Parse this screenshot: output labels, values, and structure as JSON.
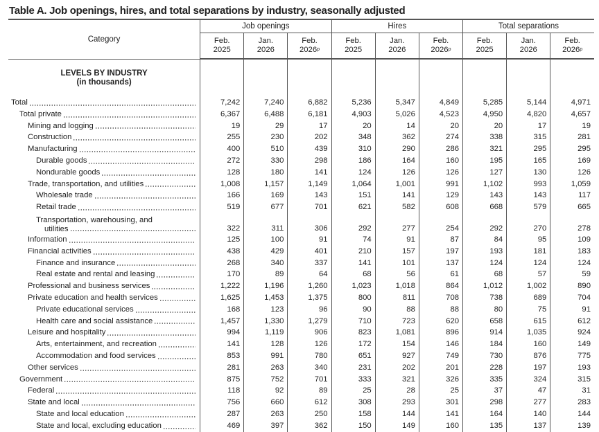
{
  "title": "Table A. Job openings, hires, and total separations by industry, seasonally adjusted",
  "header": {
    "category": "Category",
    "groups": [
      "Job openings",
      "Hires",
      "Total separations"
    ],
    "periods": [
      {
        "month": "Feb.",
        "year": "2025",
        "sup": ""
      },
      {
        "month": "Jan.",
        "year": "2026",
        "sup": ""
      },
      {
        "month": "Feb.",
        "year": "2026",
        "sup": "p"
      }
    ]
  },
  "section": {
    "title": "LEVELS BY INDUSTRY",
    "subtitle": "(in thousands)"
  },
  "rows": [
    {
      "label": "Total",
      "indent": 0,
      "values": [
        "7,242",
        "7,240",
        "6,882",
        "5,236",
        "5,347",
        "4,849",
        "5,285",
        "5,144",
        "4,971"
      ]
    },
    {
      "label": "Total private",
      "indent": 1,
      "values": [
        "6,367",
        "6,488",
        "6,181",
        "4,903",
        "5,026",
        "4,523",
        "4,950",
        "4,820",
        "4,657"
      ]
    },
    {
      "label": "Mining and logging",
      "indent": 2,
      "values": [
        "19",
        "29",
        "17",
        "20",
        "14",
        "20",
        "20",
        "17",
        "19"
      ]
    },
    {
      "label": "Construction",
      "indent": 2,
      "values": [
        "255",
        "230",
        "202",
        "348",
        "362",
        "274",
        "338",
        "315",
        "281"
      ]
    },
    {
      "label": "Manufacturing",
      "indent": 2,
      "values": [
        "400",
        "510",
        "439",
        "310",
        "290",
        "286",
        "321",
        "295",
        "295"
      ]
    },
    {
      "label": "Durable goods",
      "indent": 3,
      "values": [
        "272",
        "330",
        "298",
        "186",
        "164",
        "160",
        "195",
        "165",
        "169"
      ]
    },
    {
      "label": "Nondurable goods",
      "indent": 3,
      "values": [
        "128",
        "180",
        "141",
        "124",
        "126",
        "126",
        "127",
        "130",
        "126"
      ]
    },
    {
      "label": "Trade, transportation, and utilities",
      "indent": 2,
      "values": [
        "1,008",
        "1,157",
        "1,149",
        "1,064",
        "1,001",
        "991",
        "1,102",
        "993",
        "1,059"
      ]
    },
    {
      "label": "Wholesale trade",
      "indent": 3,
      "values": [
        "166",
        "169",
        "143",
        "151",
        "141",
        "129",
        "143",
        "143",
        "117"
      ]
    },
    {
      "label": "Retail trade",
      "indent": 3,
      "values": [
        "519",
        "677",
        "701",
        "621",
        "582",
        "608",
        "668",
        "579",
        "665"
      ]
    },
    {
      "label": "utilities",
      "label_line1": "Transportation, warehousing, and",
      "indent": 3,
      "values": [
        "322",
        "311",
        "306",
        "292",
        "277",
        "254",
        "292",
        "270",
        "278"
      ]
    },
    {
      "label": "Information",
      "indent": 2,
      "values": [
        "125",
        "100",
        "91",
        "74",
        "91",
        "87",
        "84",
        "95",
        "109"
      ]
    },
    {
      "label": "Financial activities",
      "indent": 2,
      "values": [
        "438",
        "429",
        "401",
        "210",
        "157",
        "197",
        "193",
        "181",
        "183"
      ]
    },
    {
      "label": "Finance and insurance",
      "indent": 3,
      "values": [
        "268",
        "340",
        "337",
        "141",
        "101",
        "137",
        "124",
        "124",
        "124"
      ]
    },
    {
      "label": "Real estate and rental and leasing",
      "indent": 3,
      "values": [
        "170",
        "89",
        "64",
        "68",
        "56",
        "61",
        "68",
        "57",
        "59"
      ]
    },
    {
      "label": "Professional and business services",
      "indent": 2,
      "values": [
        "1,222",
        "1,196",
        "1,260",
        "1,023",
        "1,018",
        "864",
        "1,012",
        "1,002",
        "890"
      ]
    },
    {
      "label": "Private education and health services",
      "indent": 2,
      "values": [
        "1,625",
        "1,453",
        "1,375",
        "800",
        "811",
        "708",
        "738",
        "689",
        "704"
      ]
    },
    {
      "label": "Private educational services",
      "indent": 3,
      "values": [
        "168",
        "123",
        "96",
        "90",
        "88",
        "88",
        "80",
        "75",
        "91"
      ]
    },
    {
      "label": "Health care and social assistance",
      "indent": 3,
      "values": [
        "1,457",
        "1,330",
        "1,279",
        "710",
        "723",
        "620",
        "658",
        "615",
        "612"
      ]
    },
    {
      "label": "Leisure and hospitality",
      "indent": 2,
      "values": [
        "994",
        "1,119",
        "906",
        "823",
        "1,081",
        "896",
        "914",
        "1,035",
        "924"
      ]
    },
    {
      "label": "Arts, entertainment, and recreation",
      "indent": 3,
      "values": [
        "141",
        "128",
        "126",
        "172",
        "154",
        "146",
        "184",
        "160",
        "149"
      ]
    },
    {
      "label": "Accommodation and food services",
      "indent": 3,
      "values": [
        "853",
        "991",
        "780",
        "651",
        "927",
        "749",
        "730",
        "876",
        "775"
      ]
    },
    {
      "label": "Other services",
      "indent": 2,
      "values": [
        "281",
        "263",
        "340",
        "231",
        "202",
        "201",
        "228",
        "197",
        "193"
      ]
    },
    {
      "label": "Government",
      "indent": 1,
      "values": [
        "875",
        "752",
        "701",
        "333",
        "321",
        "326",
        "335",
        "324",
        "315"
      ]
    },
    {
      "label": "Federal",
      "indent": 2,
      "values": [
        "118",
        "92",
        "89",
        "25",
        "28",
        "25",
        "37",
        "47",
        "31"
      ]
    },
    {
      "label": "State and local",
      "indent": 2,
      "values": [
        "756",
        "660",
        "612",
        "308",
        "293",
        "301",
        "298",
        "277",
        "283"
      ]
    },
    {
      "label": "State and local education",
      "indent": 3,
      "values": [
        "287",
        "263",
        "250",
        "158",
        "144",
        "141",
        "164",
        "140",
        "144"
      ]
    },
    {
      "label": "State and local, excluding education",
      "indent": 3,
      "values": [
        "469",
        "397",
        "362",
        "150",
        "149",
        "160",
        "135",
        "137",
        "139"
      ]
    }
  ]
}
